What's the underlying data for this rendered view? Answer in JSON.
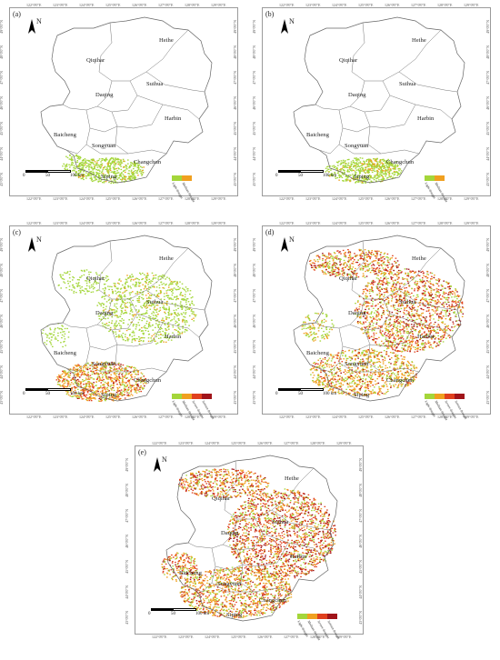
{
  "north_label": "N",
  "scale_labels": [
    "0",
    "50",
    "100 km"
  ],
  "lon_ticks": [
    "122°0'0\"E",
    "123°0'0\"E",
    "124°0'0\"E",
    "125°0'0\"E",
    "126°0'0\"E",
    "127°0'0\"E",
    "128°0'0\"E",
    "129°0'0\"E"
  ],
  "lat_ticks": [
    "49°0'0\"N",
    "48°0'0\"N",
    "47°0'0\"N",
    "46°0'0\"N",
    "45°0'0\"N",
    "44°0'0\"N",
    "43°0'0\"N"
  ],
  "legend_colors": {
    "light": "#a4d63a",
    "medium": "#f0a020",
    "severe": "#e0401e",
    "serious": "#a0141a"
  },
  "legend_labels": [
    "Light drought",
    "Medium drought",
    "Severe drought",
    "Serious drought"
  ],
  "cities": [
    "Heihe",
    "Qiqihar",
    "Suihua",
    "Daqing",
    "Harbin",
    "Baicheng",
    "Songyuan",
    "Changchun",
    "Siping"
  ],
  "panels": [
    {
      "label": "(a)",
      "legend_levels": 2
    },
    {
      "label": "(b)",
      "legend_levels": 2
    },
    {
      "label": "(c)",
      "legend_levels": 4
    },
    {
      "label": "(d)",
      "legend_levels": 4
    },
    {
      "label": "(e)",
      "legend_levels": 4
    }
  ]
}
